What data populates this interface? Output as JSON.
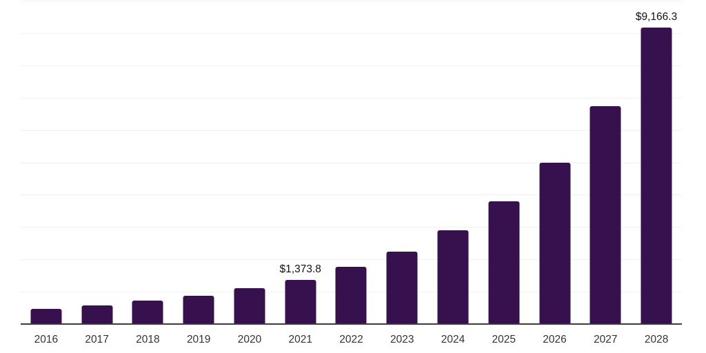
{
  "chart_data": {
    "type": "bar",
    "title": "",
    "xlabel": "",
    "ylabel": "",
    "categories": [
      "2016",
      "2017",
      "2018",
      "2019",
      "2020",
      "2021",
      "2022",
      "2023",
      "2024",
      "2025",
      "2026",
      "2027",
      "2028"
    ],
    "values": [
      465,
      580,
      715,
      870,
      1105,
      1373.8,
      1760,
      2240,
      2910,
      3800,
      5000,
      6745,
      9166.3
    ],
    "bar_labels": [
      "",
      "",
      "",
      "",
      "",
      "$1,373.8",
      "",
      "",
      "",
      "",
      "",
      "",
      "$9,166.3"
    ],
    "ylim": [
      0,
      10000
    ],
    "gridline_step": 1000,
    "grid": "horizontal-only",
    "legend": "none",
    "y_tick_labels_visible": false,
    "bar_color": "#37114d",
    "gridline_color": "#f1f1f1",
    "axis_line_color": "#3c3c3c",
    "tick_label_color": "#333333",
    "value_label_color": "#111111"
  }
}
